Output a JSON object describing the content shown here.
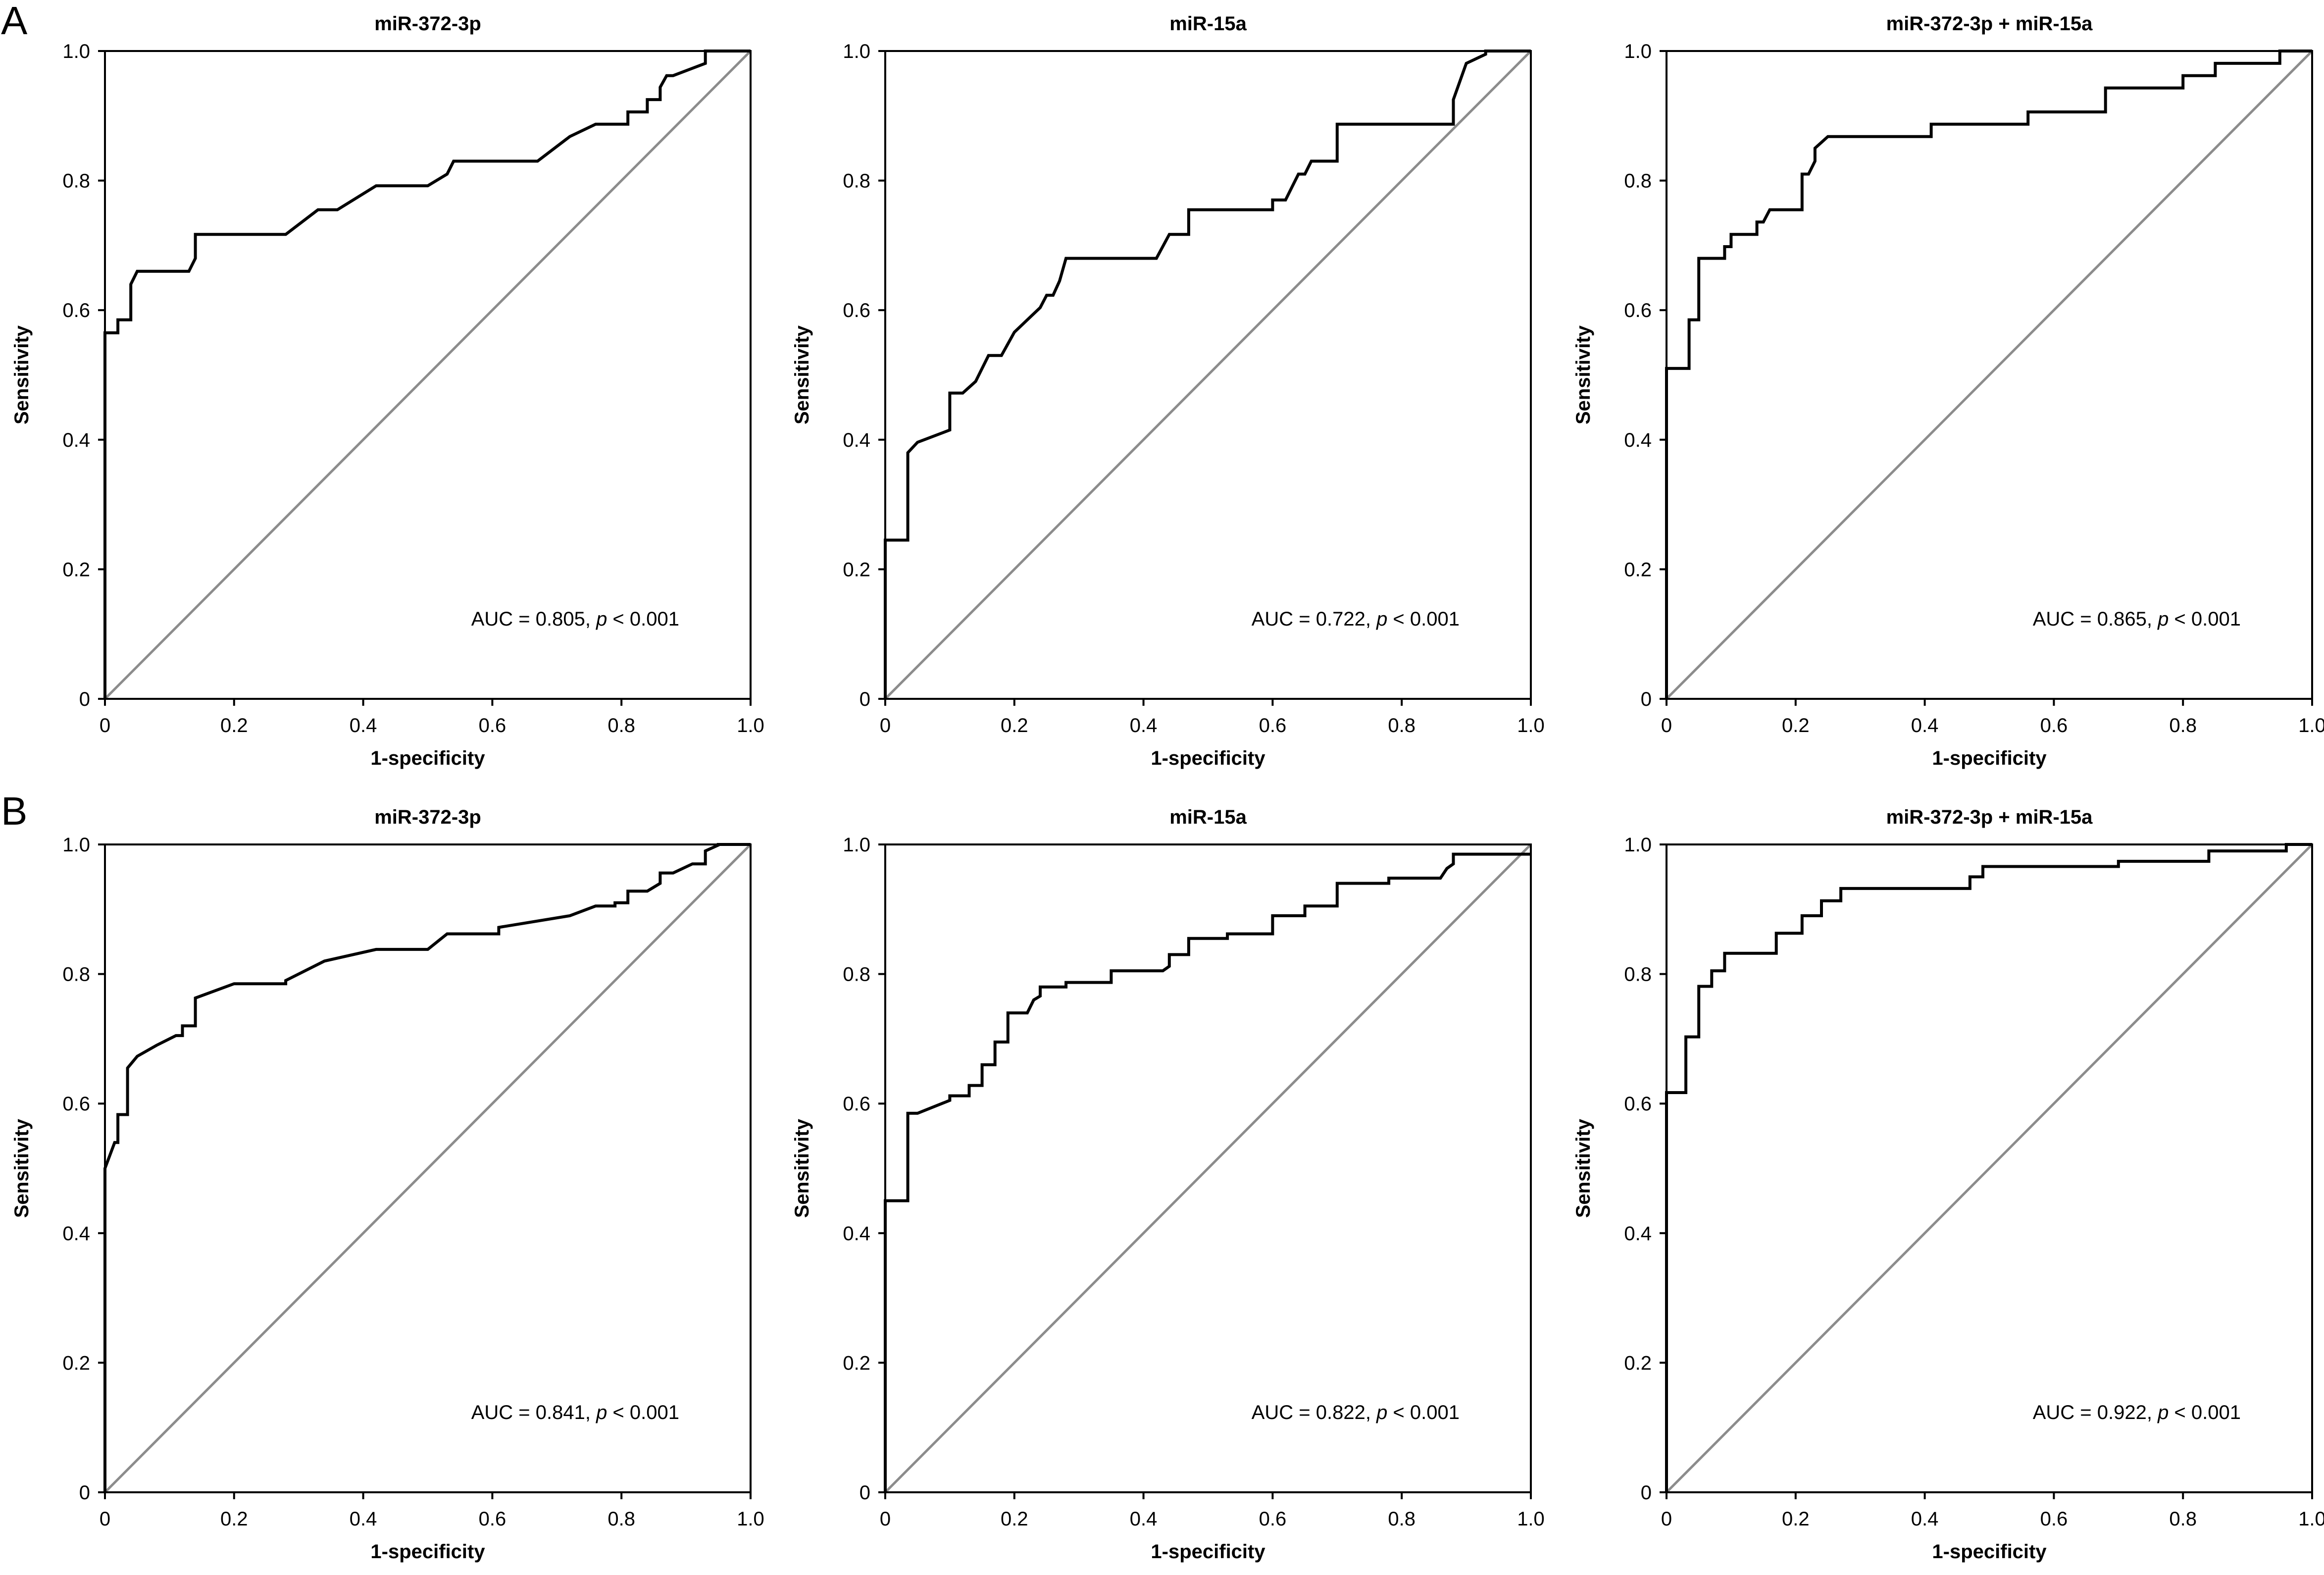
{
  "panels": [
    {
      "label": "A"
    },
    {
      "label": "B"
    }
  ],
  "colors": {
    "roc": "#000000",
    "reference": "#8c8c8c",
    "axes": "#000000"
  },
  "chart_data": [
    {
      "type": "line",
      "panel": "A",
      "title": "miR-372-3p",
      "xlabel": "1-specificity",
      "ylabel": "Sensitivity",
      "xlim": [
        0,
        1
      ],
      "ylim": [
        0,
        1
      ],
      "xticks": [
        "0",
        "0.2",
        "0.4",
        "0.6",
        "0.8",
        "1.0"
      ],
      "yticks": [
        "0",
        "0.2",
        "0.4",
        "0.6",
        "0.8",
        "1.0"
      ],
      "annotation": {
        "prefix": "AUC = 0.805, ",
        "p": "p",
        "suffix": " < 0.001"
      },
      "grid": false,
      "series": [
        {
          "x": [
            0,
            0,
            0.02,
            0.02,
            0.04,
            0.04,
            0.05,
            0.05,
            0.13,
            0.14,
            0.14,
            0.28,
            0.33,
            0.36,
            0.42,
            0.5,
            0.53,
            0.54,
            0.67,
            0.72,
            0.76,
            0.81,
            0.81,
            0.84,
            0.84,
            0.86,
            0.86,
            0.87,
            0.88,
            0.93,
            0.93,
            1.0
          ],
          "y": [
            0,
            0.565,
            0.565,
            0.585,
            0.585,
            0.64,
            0.66,
            0.66,
            0.66,
            0.68,
            0.717,
            0.717,
            0.755,
            0.755,
            0.792,
            0.792,
            0.81,
            0.83,
            0.83,
            0.868,
            0.887,
            0.887,
            0.906,
            0.906,
            0.925,
            0.925,
            0.944,
            0.962,
            0.962,
            0.981,
            1.0,
            1.0
          ]
        }
      ]
    },
    {
      "type": "line",
      "panel": "A",
      "title": "miR-15a",
      "xlabel": "1-specificity",
      "ylabel": "Sensitivity",
      "xlim": [
        0,
        1
      ],
      "ylim": [
        0,
        1
      ],
      "xticks": [
        "0",
        "0.2",
        "0.4",
        "0.6",
        "0.8",
        "1.0"
      ],
      "yticks": [
        "0",
        "0.2",
        "0.4",
        "0.6",
        "0.8",
        "1.0"
      ],
      "annotation": {
        "prefix": "AUC = 0.722, ",
        "p": "p",
        "suffix": " < 0.001"
      },
      "grid": false,
      "series": [
        {
          "x": [
            0,
            0,
            0.035,
            0.035,
            0.05,
            0.1,
            0.1,
            0.12,
            0.14,
            0.16,
            0.18,
            0.2,
            0.24,
            0.25,
            0.26,
            0.27,
            0.28,
            0.42,
            0.44,
            0.47,
            0.47,
            0.6,
            0.6,
            0.62,
            0.63,
            0.64,
            0.65,
            0.66,
            0.7,
            0.7,
            0.88,
            0.88,
            0.9,
            0.9,
            0.93,
            0.93,
            1.0
          ],
          "y": [
            0,
            0.245,
            0.245,
            0.38,
            0.396,
            0.415,
            0.472,
            0.472,
            0.49,
            0.53,
            0.53,
            0.566,
            0.604,
            0.623,
            0.623,
            0.645,
            0.68,
            0.68,
            0.717,
            0.717,
            0.755,
            0.755,
            0.77,
            0.77,
            0.79,
            0.81,
            0.81,
            0.83,
            0.83,
            0.887,
            0.887,
            0.925,
            0.981,
            0.981,
            0.995,
            1.0,
            1.0
          ]
        }
      ]
    },
    {
      "type": "line",
      "panel": "A",
      "title": "miR-372-3p + miR-15a",
      "xlabel": "1-specificity",
      "ylabel": "Sensitivity",
      "xlim": [
        0,
        1
      ],
      "ylim": [
        0,
        1
      ],
      "xticks": [
        "0",
        "0.2",
        "0.4",
        "0.6",
        "0.8",
        "1.0"
      ],
      "yticks": [
        "0",
        "0.2",
        "0.4",
        "0.6",
        "0.8",
        "1.0"
      ],
      "annotation": {
        "prefix": "AUC = 0.865, ",
        "p": "p",
        "suffix": " < 0.001"
      },
      "grid": false,
      "series": [
        {
          "x": [
            0,
            0,
            0.035,
            0.035,
            0.05,
            0.05,
            0.09,
            0.09,
            0.1,
            0.1,
            0.14,
            0.14,
            0.15,
            0.16,
            0.16,
            0.21,
            0.21,
            0.22,
            0.23,
            0.23,
            0.25,
            0.41,
            0.41,
            0.56,
            0.56,
            0.68,
            0.68,
            0.8,
            0.8,
            0.85,
            0.85,
            0.95,
            0.95,
            1.0
          ],
          "y": [
            0,
            0.51,
            0.51,
            0.585,
            0.585,
            0.68,
            0.68,
            0.698,
            0.698,
            0.717,
            0.717,
            0.736,
            0.736,
            0.755,
            0.755,
            0.755,
            0.81,
            0.81,
            0.83,
            0.85,
            0.868,
            0.868,
            0.887,
            0.887,
            0.906,
            0.906,
            0.943,
            0.943,
            0.962,
            0.962,
            0.981,
            0.981,
            1.0,
            1.0
          ]
        }
      ]
    },
    {
      "type": "line",
      "panel": "B",
      "title": "miR-372-3p",
      "xlabel": "1-specificity",
      "ylabel": "Sensitivity",
      "xlim": [
        0,
        1
      ],
      "ylim": [
        0,
        1
      ],
      "xticks": [
        "0",
        "0.2",
        "0.4",
        "0.6",
        "0.8",
        "1.0"
      ],
      "yticks": [
        "0",
        "0.2",
        "0.4",
        "0.6",
        "0.8",
        "1.0"
      ],
      "annotation": {
        "prefix": "AUC = 0.841, ",
        "p": "p",
        "suffix": " < 0.001"
      },
      "grid": false,
      "series": [
        {
          "x": [
            0,
            0,
            0.015,
            0.02,
            0.02,
            0.035,
            0.035,
            0.05,
            0.08,
            0.11,
            0.12,
            0.12,
            0.14,
            0.14,
            0.2,
            0.28,
            0.28,
            0.34,
            0.42,
            0.5,
            0.53,
            0.61,
            0.61,
            0.72,
            0.76,
            0.79,
            0.79,
            0.81,
            0.81,
            0.84,
            0.86,
            0.86,
            0.88,
            0.91,
            0.93,
            0.93,
            0.95,
            0.95,
            1.0
          ],
          "y": [
            0,
            0.5,
            0.54,
            0.54,
            0.583,
            0.583,
            0.655,
            0.673,
            0.69,
            0.705,
            0.705,
            0.72,
            0.72,
            0.763,
            0.785,
            0.785,
            0.79,
            0.82,
            0.838,
            0.838,
            0.862,
            0.862,
            0.872,
            0.89,
            0.905,
            0.905,
            0.91,
            0.91,
            0.928,
            0.928,
            0.94,
            0.956,
            0.956,
            0.97,
            0.97,
            0.99,
            0.999,
            1.0,
            1.0
          ]
        }
      ]
    },
    {
      "type": "line",
      "panel": "B",
      "title": "miR-15a",
      "xlabel": "1-specificity",
      "ylabel": "Sensitivity",
      "xlim": [
        0,
        1
      ],
      "ylim": [
        0,
        1
      ],
      "xticks": [
        "0",
        "0.2",
        "0.4",
        "0.6",
        "0.8",
        "1.0"
      ],
      "yticks": [
        "0",
        "0.2",
        "0.4",
        "0.6",
        "0.8",
        "1.0"
      ],
      "annotation": {
        "prefix": "AUC = 0.822, ",
        "p": "p",
        "suffix": " < 0.001"
      },
      "grid": false,
      "series": [
        {
          "x": [
            0,
            0,
            0.035,
            0.035,
            0.05,
            0.1,
            0.1,
            0.13,
            0.13,
            0.15,
            0.15,
            0.17,
            0.17,
            0.19,
            0.19,
            0.22,
            0.23,
            0.24,
            0.24,
            0.28,
            0.28,
            0.35,
            0.35,
            0.43,
            0.44,
            0.44,
            0.47,
            0.47,
            0.53,
            0.53,
            0.6,
            0.6,
            0.65,
            0.65,
            0.7,
            0.7,
            0.78,
            0.78,
            0.86,
            0.87,
            0.88,
            0.88,
            1.0
          ],
          "y": [
            0,
            0.45,
            0.45,
            0.585,
            0.585,
            0.605,
            0.612,
            0.612,
            0.628,
            0.628,
            0.66,
            0.66,
            0.695,
            0.695,
            0.74,
            0.74,
            0.76,
            0.766,
            0.78,
            0.78,
            0.787,
            0.787,
            0.805,
            0.805,
            0.812,
            0.83,
            0.83,
            0.855,
            0.855,
            0.862,
            0.862,
            0.89,
            0.89,
            0.905,
            0.905,
            0.94,
            0.94,
            0.948,
            0.948,
            0.963,
            0.97,
            0.985,
            0.985
          ]
        }
      ]
    },
    {
      "type": "line",
      "panel": "B",
      "title": "miR-372-3p + miR-15a",
      "xlabel": "1-specificity",
      "ylabel": "Sensitivity",
      "xlim": [
        0,
        1
      ],
      "ylim": [
        0,
        1
      ],
      "xticks": [
        "0",
        "0.2",
        "0.4",
        "0.6",
        "0.8",
        "1.0"
      ],
      "yticks": [
        "0",
        "0.2",
        "0.4",
        "0.6",
        "0.8",
        "1.0"
      ],
      "annotation": {
        "prefix": "AUC = 0.922, ",
        "p": "p",
        "suffix": " < 0.001"
      },
      "grid": false,
      "series": [
        {
          "x": [
            0,
            0,
            0.03,
            0.03,
            0.05,
            0.05,
            0.07,
            0.07,
            0.09,
            0.09,
            0.17,
            0.17,
            0.21,
            0.21,
            0.24,
            0.24,
            0.27,
            0.27,
            0.47,
            0.47,
            0.49,
            0.49,
            0.7,
            0.7,
            0.84,
            0.84,
            0.96,
            0.96,
            1.0
          ],
          "y": [
            0,
            0.617,
            0.617,
            0.703,
            0.703,
            0.781,
            0.781,
            0.805,
            0.805,
            0.832,
            0.832,
            0.863,
            0.863,
            0.89,
            0.89,
            0.913,
            0.913,
            0.932,
            0.932,
            0.95,
            0.95,
            0.966,
            0.966,
            0.974,
            0.974,
            0.99,
            0.99,
            1.0,
            1.0
          ]
        }
      ]
    }
  ]
}
